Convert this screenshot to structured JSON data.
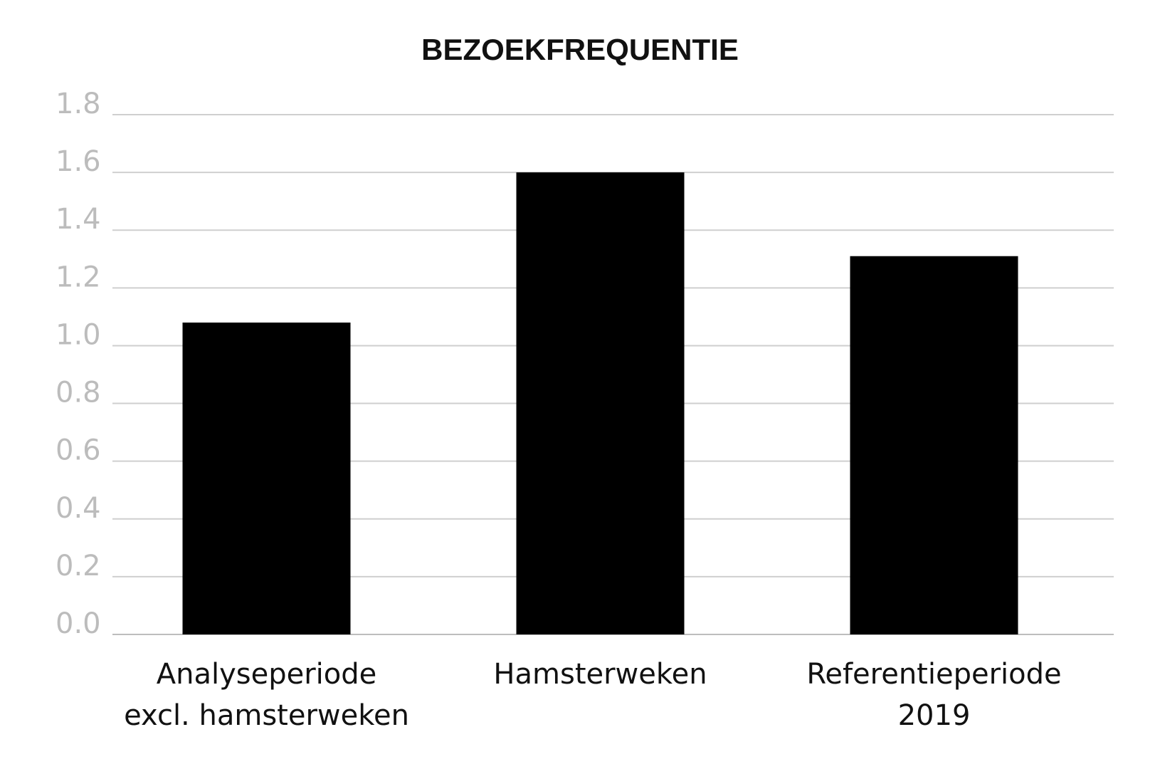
{
  "chart_data": {
    "type": "bar",
    "title": "BEZOEKFREQUENTIE",
    "categories": [
      [
        "Analyseperiode",
        "excl. hamsterweken"
      ],
      [
        "Hamsterweken"
      ],
      [
        "Referentieperiode",
        "2019"
      ]
    ],
    "values": [
      1.08,
      1.6,
      1.31
    ],
    "yticks": [
      "0.0",
      "0.2",
      "0.4",
      "0.6",
      "0.8",
      "1.0",
      "1.2",
      "1.4",
      "1.6",
      "1.8"
    ],
    "ylim": [
      0,
      1.8
    ],
    "xlabel": "",
    "ylabel": "",
    "grid": true,
    "legend": "none",
    "bar_color": "#000000",
    "grid_color": "#cfcfcf",
    "tick_color": "#bcbcbc"
  }
}
